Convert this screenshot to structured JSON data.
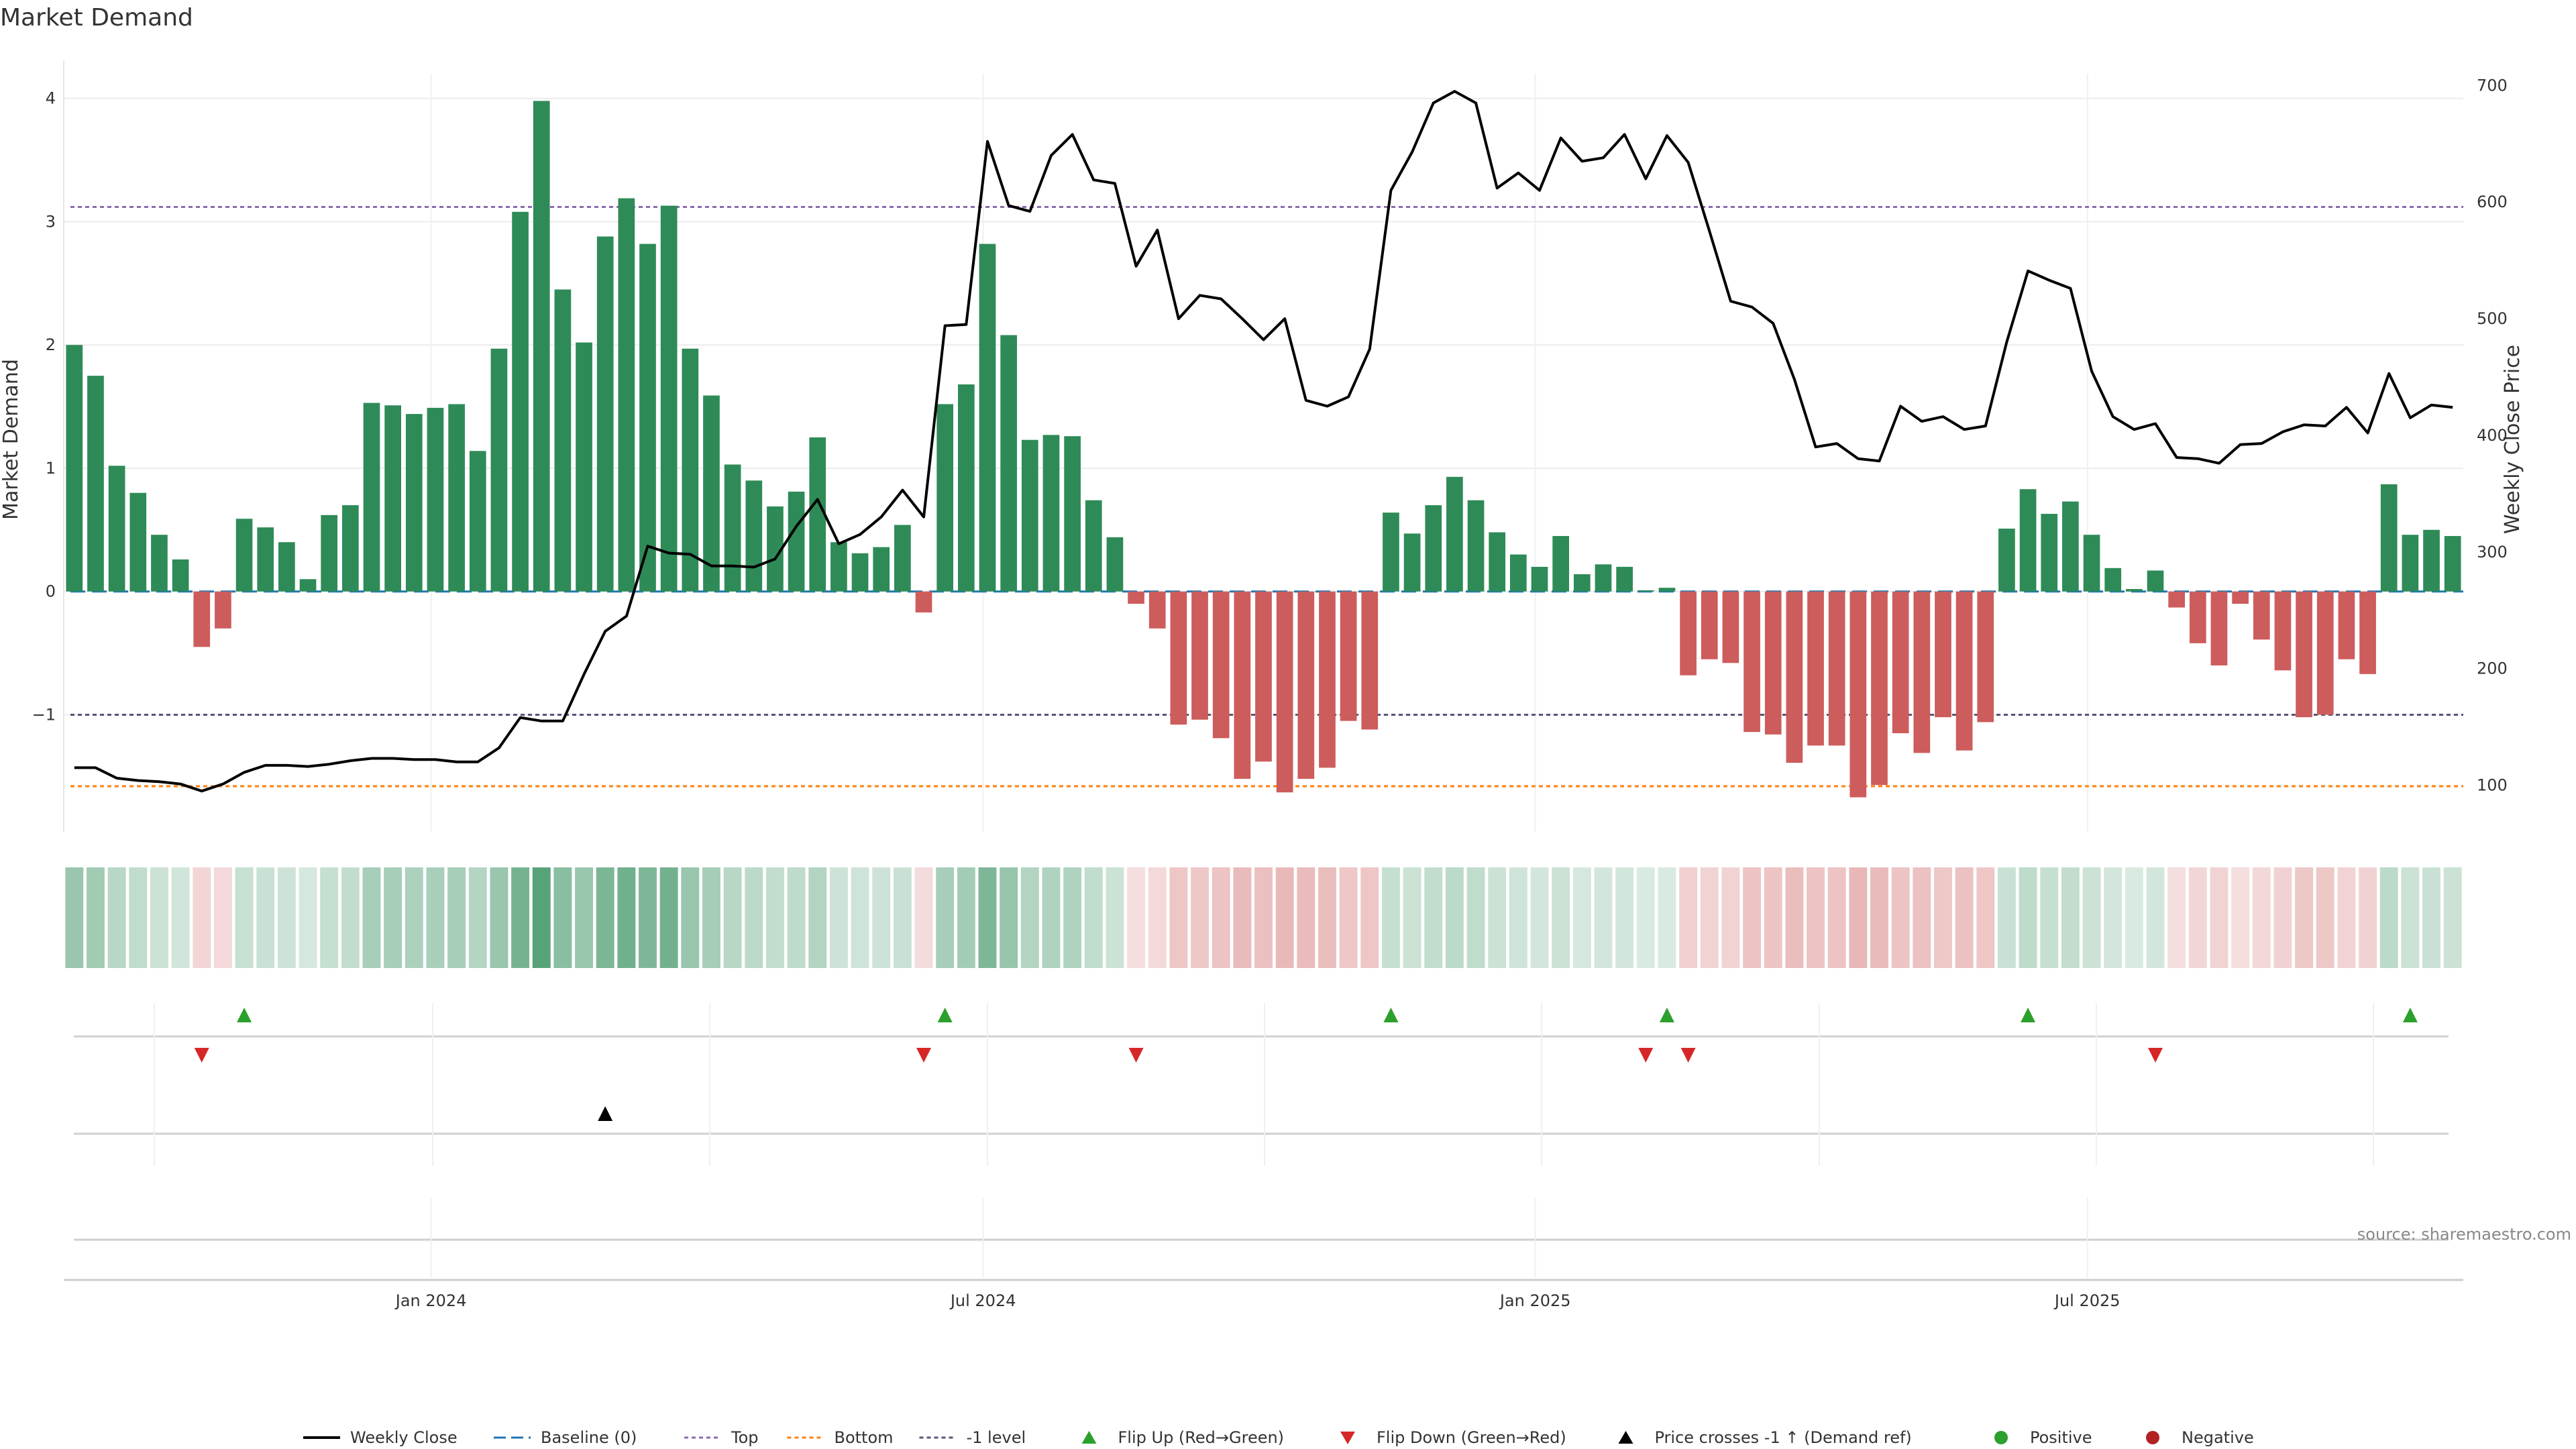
{
  "chart_data": {
    "type": "bar",
    "title": "Market Demand",
    "ylabel_left": "Market Demand",
    "ylabel_right": "Weekly Close Price",
    "source": "source: sharemaestro.com",
    "ylim_left": [
      -1.95,
      4.2
    ],
    "ylim_right": [
      60,
      710
    ],
    "left_ticks": [
      {
        "v": 4,
        "t": "4"
      },
      {
        "v": 3,
        "t": "3"
      },
      {
        "v": 2,
        "t": "2"
      },
      {
        "v": 1,
        "t": "1"
      },
      {
        "v": 0,
        "t": "0"
      },
      {
        "v": -1,
        "t": "−1"
      }
    ],
    "right_ticks": [
      {
        "v": 700,
        "t": "700"
      },
      {
        "v": 600,
        "t": "600"
      },
      {
        "v": 500,
        "t": "500"
      },
      {
        "v": 400,
        "t": "400"
      },
      {
        "v": 300,
        "t": "300"
      },
      {
        "v": 200,
        "t": "200"
      },
      {
        "v": 100,
        "t": "100"
      }
    ],
    "x_ticks": [
      {
        "i": 17.3,
        "t": "Jan 2024"
      },
      {
        "i": 43.3,
        "t": "Jul 2024"
      },
      {
        "i": 69.3,
        "t": "Jan 2025"
      },
      {
        "i": 95.3,
        "t": "Jul 2025"
      }
    ],
    "reference_lines": {
      "top": 3.12,
      "bottom": -1.58,
      "minus_one": -1.0,
      "baseline": 0
    },
    "colors": {
      "positive": "#2e8b57",
      "negative": "#cd5c5c",
      "price": "#000000",
      "flip_up": "#2ca02c",
      "flip_down": "#d62728",
      "price_cross": "#000000",
      "top": "#8c6bb1",
      "bottom": "#ff7f0e",
      "minus_one": "#555577",
      "baseline": "#1f77b4"
    },
    "demand": [
      2.0,
      1.75,
      1.02,
      0.8,
      0.46,
      0.26,
      -0.45,
      -0.3,
      0.59,
      0.52,
      0.4,
      0.1,
      0.62,
      0.7,
      1.53,
      1.51,
      1.44,
      1.49,
      1.52,
      1.14,
      1.97,
      3.08,
      3.98,
      2.45,
      2.02,
      2.88,
      3.19,
      2.82,
      3.13,
      1.97,
      1.59,
      1.03,
      0.9,
      0.69,
      0.81,
      1.25,
      0.4,
      0.31,
      0.36,
      0.54,
      -0.17,
      1.52,
      1.68,
      2.82,
      2.08,
      1.23,
      1.27,
      1.26,
      0.74,
      0.44,
      -0.1,
      -0.3,
      -1.08,
      -1.04,
      -1.19,
      -1.52,
      -1.38,
      -1.63,
      -1.52,
      -1.43,
      -1.05,
      -1.12,
      0.64,
      0.47,
      0.7,
      0.93,
      0.74,
      0.48,
      0.3,
      0.2,
      0.45,
      0.14,
      0.22,
      0.2,
      0.01,
      0.03,
      -0.68,
      -0.55,
      -0.58,
      -1.14,
      -1.16,
      -1.39,
      -1.25,
      -1.25,
      -1.67,
      -1.57,
      -1.15,
      -1.31,
      -1.02,
      -1.29,
      -1.06,
      0.51,
      0.83,
      0.63,
      0.73,
      0.46,
      0.19,
      0.02,
      0.17,
      -0.13,
      -0.42,
      -0.6,
      -0.1,
      -0.39,
      -0.64,
      -1.02,
      -1.0,
      -0.55,
      -0.67,
      0.87,
      0.46,
      0.5,
      0.45
    ],
    "weekly_close": [
      115,
      115,
      106,
      104,
      103,
      101,
      95,
      101,
      111,
      117,
      117,
      116,
      118,
      121,
      123,
      123,
      122,
      122,
      120,
      120,
      132,
      158,
      155,
      155,
      195,
      232,
      245,
      305,
      299,
      298,
      288,
      288,
      287,
      294,
      322,
      345,
      307,
      315,
      330,
      353,
      330,
      494,
      495,
      652,
      597,
      592,
      640,
      658,
      619,
      616,
      545,
      576,
      500,
      520,
      517,
      500,
      482,
      500,
      430,
      425,
      433,
      474,
      610,
      643,
      685,
      695,
      685,
      612,
      625,
      610,
      655,
      635,
      638,
      658,
      620,
      657,
      634,
      575,
      515,
      510,
      496,
      448,
      390,
      393,
      380,
      378,
      425,
      412,
      416,
      405,
      408,
      480,
      541,
      533,
      526,
      455,
      416,
      405,
      410,
      381,
      380,
      376,
      392,
      393,
      403,
      409,
      408,
      424,
      402,
      453,
      415,
      426,
      424
    ]
  },
  "heat_strip": {
    "label": ""
  },
  "signals": {
    "flip_up_idx": [
      8,
      41,
      62,
      75,
      92,
      110
    ],
    "flip_down_idx": [
      6,
      40,
      50,
      74,
      76,
      98
    ],
    "price_cross_idx": [
      25
    ]
  },
  "legend": [
    {
      "key": "line",
      "label": "Weekly Close"
    },
    {
      "key": "baseline",
      "label": "Baseline (0)"
    },
    {
      "key": "top",
      "label": "Top"
    },
    {
      "key": "bottom",
      "label": "Bottom"
    },
    {
      "key": "minus_one",
      "label": "-1 level"
    },
    {
      "key": "flip_up",
      "label": "Flip Up (Red→Green)"
    },
    {
      "key": "flip_down",
      "label": "Flip Down (Green→Red)"
    },
    {
      "key": "price_cross",
      "label": "Price crosses -1 ↑ (Demand ref)"
    },
    {
      "key": "positive",
      "label": "Positive"
    },
    {
      "key": "negative",
      "label": "Negative"
    }
  ]
}
